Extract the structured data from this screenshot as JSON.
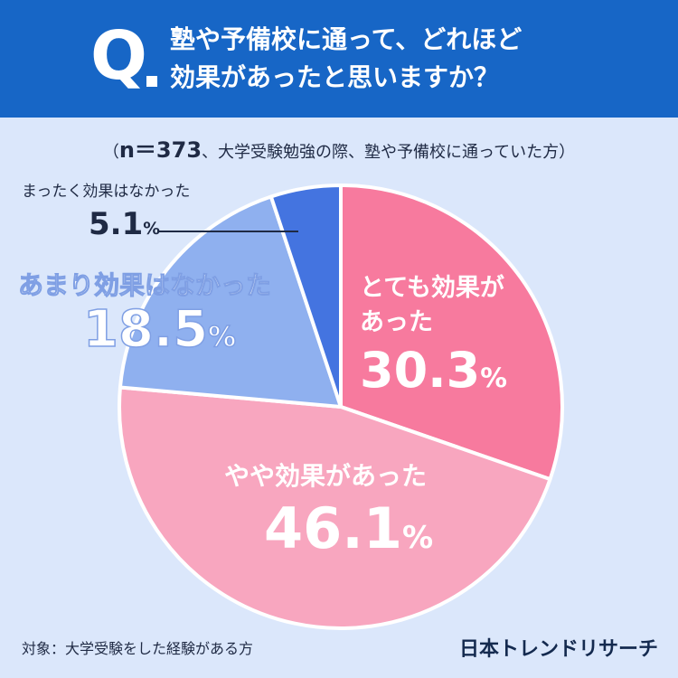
{
  "header": {
    "q_letter": "Q",
    "question_line1": "塾や予備校に通って、どれほど",
    "question_line2": "効果があったと思いますか？"
  },
  "sample": {
    "open": "（",
    "n_text": "n＝373",
    "rest": "、大学受験勉強の際、塾や予備校に通っていた方）"
  },
  "chart_data": {
    "type": "pie",
    "categories": [
      "とても効果があった",
      "やや効果があった",
      "あまり効果はなかった",
      "まったく効果はなかった"
    ],
    "values": [
      30.3,
      46.1,
      18.5,
      5.1
    ],
    "unit": "%",
    "start": "12 o'clock, clockwise",
    "colors": [
      "#f77a9e",
      "#f8a6bf",
      "#8fb0ef",
      "#4474e0"
    ],
    "labels": {
      "s0_line1": "とても効果が",
      "s0_line2": "あった",
      "s0_value": "30.3",
      "s1_label": "やや効果があった",
      "s1_value": "46.1",
      "s2_label": "あまり効果はなかった",
      "s2_value": "18.5",
      "s3_label": "まったく効果はなかった",
      "s3_value": "5.1",
      "pct": "%"
    }
  },
  "footer": {
    "note": "対象：大学受験をした経験がある方",
    "brand": "日本トレンドリサーチ"
  }
}
